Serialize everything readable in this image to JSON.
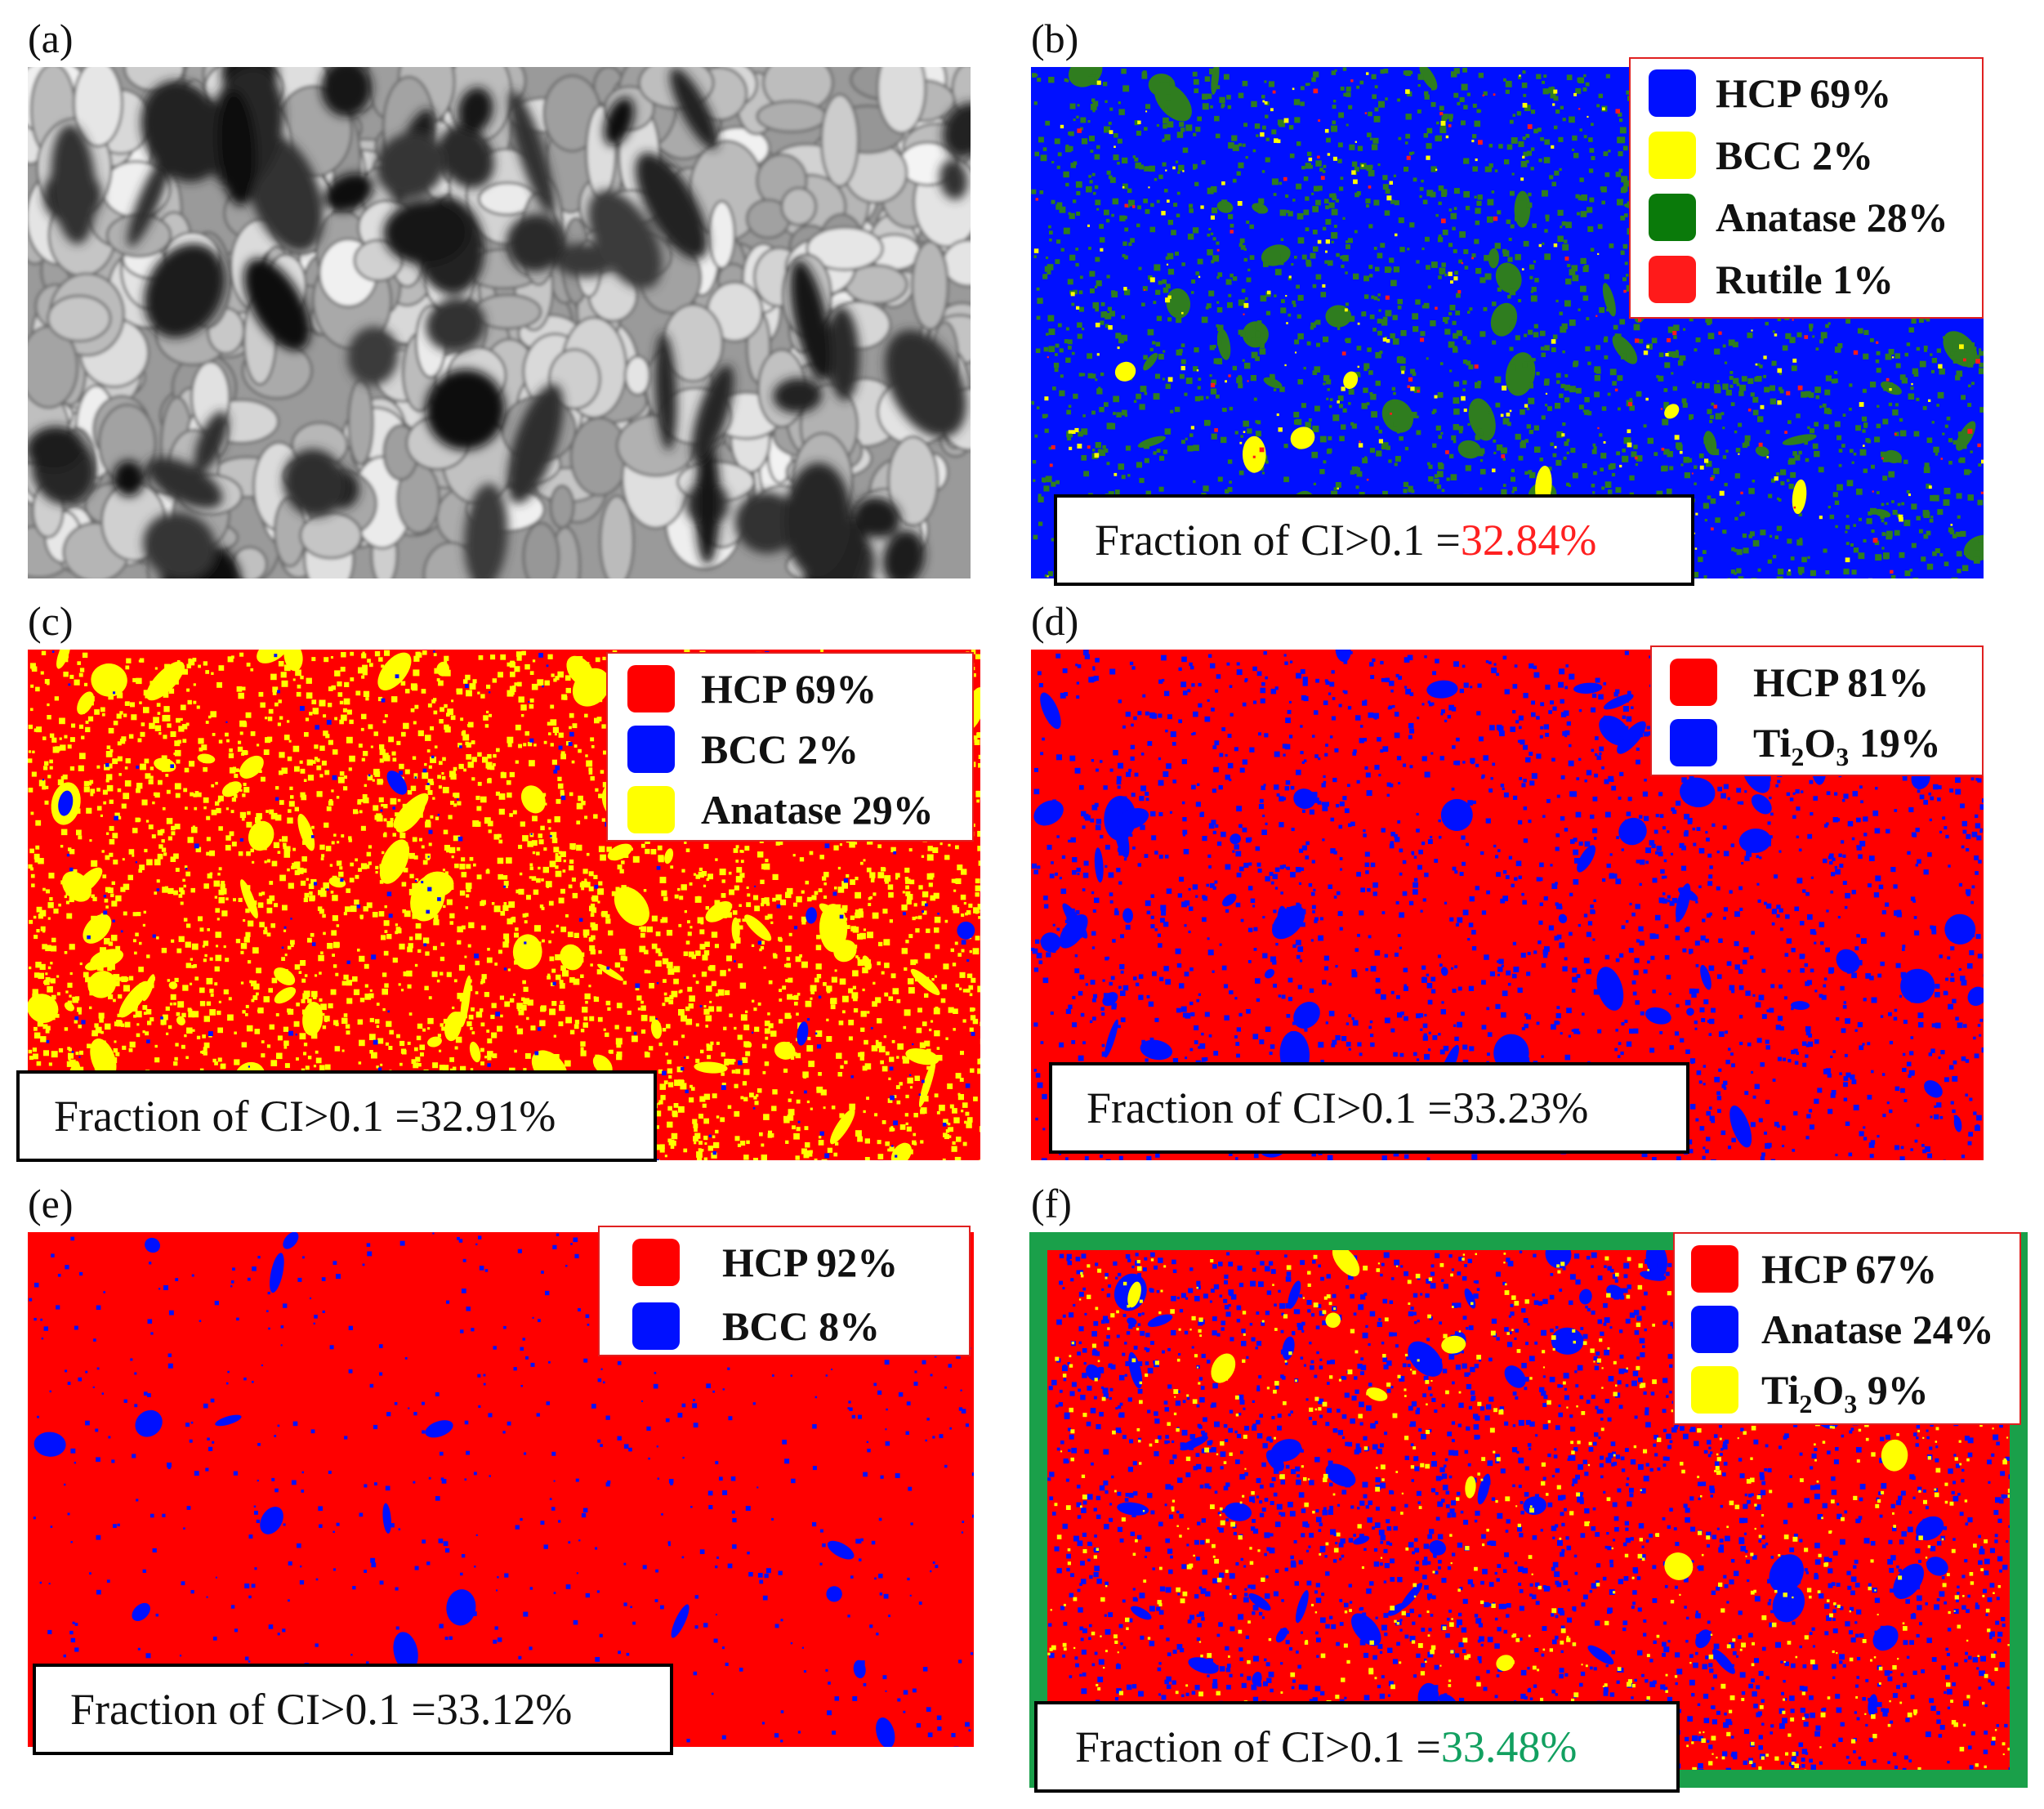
{
  "panels": {
    "a": {
      "label": "(a)"
    },
    "b": {
      "label": "(b)",
      "legend": [
        {
          "text": "HCP 69%",
          "color": "#0010ff"
        },
        {
          "text": "BCC 2%",
          "color": "#ffff00"
        },
        {
          "text": "Anatase 28%",
          "color": "#0a7a0a"
        },
        {
          "text": "Rutile 1%",
          "color": "#ff1a1a"
        }
      ],
      "fraction_prefix": "Fraction of CI>0.1 =",
      "fraction_value": "32.84%",
      "fraction_value_color": "#ff2020"
    },
    "c": {
      "label": "(c)",
      "legend": [
        {
          "text": "HCP 69%",
          "color": "#ff0000"
        },
        {
          "text": "BCC 2%",
          "color": "#0010ff"
        },
        {
          "text": "Anatase 29%",
          "color": "#ffff00"
        }
      ],
      "fraction_prefix": "Fraction of CI>0.1 =",
      "fraction_value": "32.91%"
    },
    "d": {
      "label": "(d)",
      "legend": [
        {
          "text": "HCP 81%",
          "color": "#ff0000"
        },
        {
          "text_main": "Ti",
          "sub1": "2",
          "text_mid": "O",
          "sub2": "3",
          "text_end": " 19%",
          "color": "#0010ff"
        }
      ],
      "fraction_prefix": "Fraction of CI>0.1 =",
      "fraction_value": "33.23%"
    },
    "e": {
      "label": "(e)",
      "legend": [
        {
          "text": "HCP 92%",
          "color": "#ff0000"
        },
        {
          "text": "BCC 8%",
          "color": "#0010ff"
        }
      ],
      "fraction_prefix": "Fraction of CI>0.1 =",
      "fraction_value": "33.12%"
    },
    "f": {
      "label": "(f)",
      "legend": [
        {
          "text": "HCP 67%",
          "color": "#ff0000"
        },
        {
          "text": "Anatase 24%",
          "color": "#0010ff"
        },
        {
          "text_main": "Ti",
          "sub1": "2",
          "text_mid": "O",
          "sub2": "3",
          "text_end": " 9%",
          "color": "#ffff00"
        }
      ],
      "fraction_prefix": "Fraction of CI>0.1 =",
      "fraction_value": "33.48%",
      "fraction_value_color": "#12a060",
      "frame_color": "#1aa04a"
    }
  }
}
